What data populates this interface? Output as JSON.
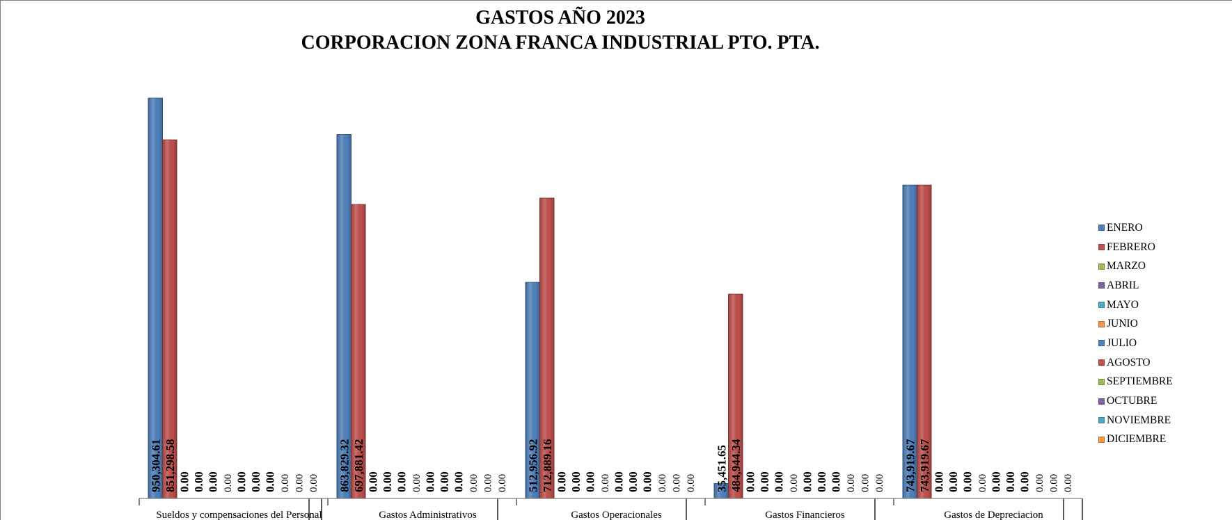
{
  "chart_data": {
    "type": "bar",
    "title": "GASTOS AÑO 2023",
    "subtitle": "CORPORACION ZONA FRANCA INDUSTRIAL PTO. PTA.",
    "categories": [
      "Sueldos y compensaciones del Personal",
      "Gastos Administrativos",
      "Gastos Operacionales",
      "Gastos Financieros",
      "Gastos de Depreciacion"
    ],
    "series": [
      {
        "name": "ENERO",
        "color": "#4f81bd",
        "values": [
          950304.61,
          863829.32,
          512956.92,
          35451.65,
          743919.67
        ],
        "labels": [
          "950,304.61",
          "863,829.32",
          "512,956.92",
          "35,451.65",
          "743,919.67"
        ]
      },
      {
        "name": "FEBRERO",
        "color": "#c0504d",
        "values": [
          851298.58,
          697881.42,
          712889.16,
          484944.34,
          743919.67
        ],
        "labels": [
          "851,298.58",
          "697,881.42",
          "712,889.16",
          "484,944.34",
          "743,919.67"
        ]
      },
      {
        "name": "MARZO",
        "color": "#9bbb59",
        "values": [
          0,
          0,
          0,
          0,
          0
        ],
        "labels": [
          "0.00",
          "0.00",
          "0.00",
          "0.00",
          "0.00"
        ]
      },
      {
        "name": "ABRIL",
        "color": "#8064a2",
        "values": [
          0,
          0,
          0,
          0,
          0
        ],
        "labels": [
          "0.00",
          "0.00",
          "0.00",
          "0.00",
          "0.00"
        ]
      },
      {
        "name": "MAYO",
        "color": "#4bacc6",
        "values": [
          0,
          0,
          0,
          0,
          0
        ],
        "labels": [
          "0.00",
          "0.00",
          "0.00",
          "0.00",
          "0.00"
        ]
      },
      {
        "name": "JUNIO",
        "color": "#f79646",
        "values": [
          0,
          0,
          0,
          0,
          0
        ],
        "labels": [
          "0.00",
          "0.00",
          "0.00",
          "0.00",
          "0.00"
        ]
      },
      {
        "name": "JULIO",
        "color": "#4f81bd",
        "values": [
          0,
          0,
          0,
          0,
          0
        ],
        "labels": [
          "0.00",
          "0.00",
          "0.00",
          "0.00",
          "0.00"
        ]
      },
      {
        "name": "AGOSTO",
        "color": "#c0504d",
        "values": [
          0,
          0,
          0,
          0,
          0
        ],
        "labels": [
          "0.00",
          "0.00",
          "0.00",
          "0.00",
          "0.00"
        ]
      },
      {
        "name": "SEPTIEMBRE",
        "color": "#9bbb59",
        "values": [
          0,
          0,
          0,
          0,
          0
        ],
        "labels": [
          "0.00",
          "0.00",
          "0.00",
          "0.00",
          "0.00"
        ]
      },
      {
        "name": "OCTUBRE",
        "color": "#8064a2",
        "values": [
          0,
          0,
          0,
          0,
          0
        ],
        "labels": [
          "0.00",
          "0.00",
          "0.00",
          "0.00",
          "0.00"
        ]
      },
      {
        "name": "NOVIEMBRE",
        "color": "#4bacc6",
        "values": [
          0,
          0,
          0,
          0,
          0
        ],
        "labels": [
          "0.00",
          "0.00",
          "0.00",
          "0.00",
          "0.00"
        ]
      },
      {
        "name": "DICIEMBRE",
        "color": "#f79646",
        "values": [
          0,
          0,
          0,
          0,
          0
        ],
        "labels": [
          "0.00",
          "0.00",
          "0.00",
          "0.00",
          "0.00"
        ]
      }
    ],
    "ylim": [
      0,
      1000000
    ],
    "grid": false,
    "legend_position": "right",
    "xlabel": "",
    "ylabel": ""
  }
}
